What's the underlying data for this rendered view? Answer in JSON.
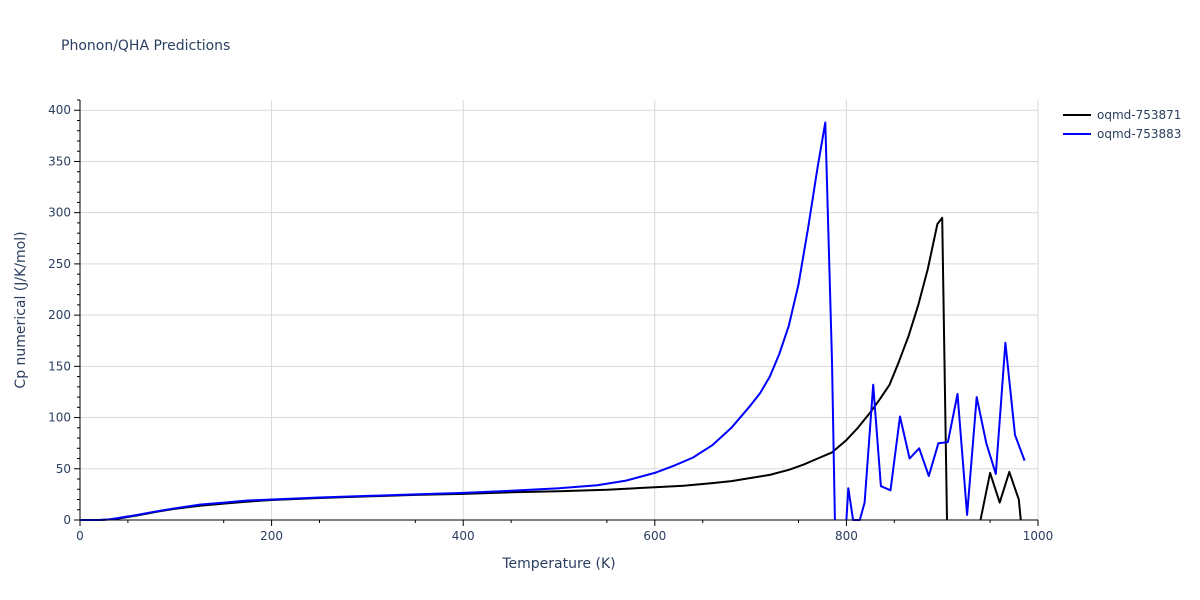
{
  "chart_data": {
    "type": "line",
    "title": "Phonon/QHA Predictions",
    "xlabel": "Temperature (K)",
    "ylabel": "Cp numerical (J/K/mol)",
    "xlim": [
      0,
      1000
    ],
    "ylim": [
      0,
      410
    ],
    "xticks": [
      0,
      200,
      400,
      600,
      800,
      1000
    ],
    "yticks": [
      0,
      50,
      100,
      150,
      200,
      250,
      300,
      350,
      400
    ],
    "grid": true,
    "legend_position": "top-right",
    "series": [
      {
        "name": "oqmd-753871",
        "color": "#000000",
        "points": [
          [
            0,
            0
          ],
          [
            20,
            0
          ],
          [
            30,
            0.5
          ],
          [
            40,
            1.5
          ],
          [
            60,
            4.5
          ],
          [
            80,
            8
          ],
          [
            100,
            11
          ],
          [
            125,
            14
          ],
          [
            150,
            16
          ],
          [
            175,
            18
          ],
          [
            200,
            19.5
          ],
          [
            225,
            20.5
          ],
          [
            250,
            21.5
          ],
          [
            300,
            23
          ],
          [
            350,
            24.5
          ],
          [
            400,
            25.5
          ],
          [
            450,
            27
          ],
          [
            500,
            28
          ],
          [
            550,
            29.5
          ],
          [
            600,
            32
          ],
          [
            630,
            33.5
          ],
          [
            660,
            36
          ],
          [
            680,
            38
          ],
          [
            700,
            41
          ],
          [
            720,
            44
          ],
          [
            740,
            49
          ],
          [
            755,
            54
          ],
          [
            770,
            60
          ],
          [
            785,
            66
          ],
          [
            800,
            78
          ],
          [
            812,
            90
          ],
          [
            825,
            105
          ],
          [
            835,
            118
          ],
          [
            845,
            132
          ],
          [
            855,
            155
          ],
          [
            865,
            180
          ],
          [
            875,
            210
          ],
          [
            885,
            245
          ],
          [
            895,
            289
          ],
          [
            900,
            295
          ],
          [
            905,
            0
          ]
        ]
      },
      {
        "name": "oqmd-753871-tail",
        "color": "#000000",
        "points": [
          [
            940,
            0
          ],
          [
            950,
            46
          ],
          [
            960,
            17
          ],
          [
            970,
            47
          ],
          [
            980,
            20
          ],
          [
            982,
            0
          ]
        ]
      },
      {
        "name": "oqmd-753883",
        "color": "#0000ff",
        "points": [
          [
            0,
            0
          ],
          [
            20,
            0
          ],
          [
            30,
            0.5
          ],
          [
            40,
            2
          ],
          [
            60,
            5
          ],
          [
            80,
            8.5
          ],
          [
            100,
            11.5
          ],
          [
            125,
            15
          ],
          [
            150,
            17
          ],
          [
            175,
            19
          ],
          [
            200,
            20
          ],
          [
            225,
            21
          ],
          [
            250,
            22
          ],
          [
            300,
            23.5
          ],
          [
            350,
            25
          ],
          [
            400,
            26.5
          ],
          [
            450,
            28.5
          ],
          [
            500,
            31
          ],
          [
            540,
            34
          ],
          [
            570,
            38.5
          ],
          [
            600,
            46
          ],
          [
            620,
            53
          ],
          [
            640,
            61
          ],
          [
            660,
            73
          ],
          [
            680,
            90
          ],
          [
            700,
            112
          ],
          [
            710,
            124
          ],
          [
            720,
            140
          ],
          [
            730,
            162
          ],
          [
            740,
            190
          ],
          [
            750,
            230
          ],
          [
            760,
            285
          ],
          [
            770,
            345
          ],
          [
            778,
            388
          ],
          [
            785,
            155
          ],
          [
            788,
            0
          ]
        ]
      },
      {
        "name": "oqmd-753883-tail",
        "color": "#0000ff",
        "points": [
          [
            800,
            0
          ],
          [
            802,
            31
          ],
          [
            807,
            0
          ],
          [
            814,
            0
          ],
          [
            819,
            17
          ],
          [
            828,
            132
          ],
          [
            836,
            33
          ],
          [
            846,
            29
          ],
          [
            856,
            101
          ],
          [
            866,
            60
          ],
          [
            876,
            70
          ],
          [
            886,
            43
          ],
          [
            896,
            75
          ],
          [
            906,
            76
          ],
          [
            916,
            123
          ],
          [
            926,
            5
          ],
          [
            936,
            120
          ],
          [
            946,
            75
          ],
          [
            956,
            45
          ],
          [
            966,
            173
          ],
          [
            976,
            83
          ],
          [
            986,
            58
          ]
        ]
      }
    ],
    "legend": [
      {
        "label": "oqmd-753871",
        "color": "#000000"
      },
      {
        "label": "oqmd-753883",
        "color": "#0000ff"
      }
    ]
  }
}
